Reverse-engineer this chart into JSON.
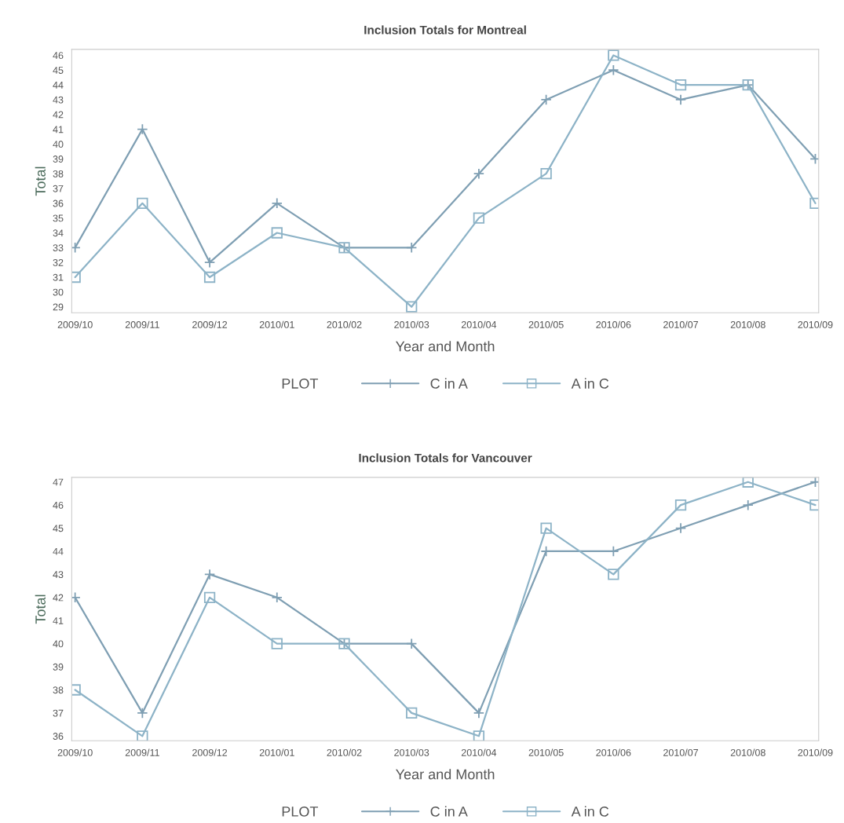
{
  "chart_data": [
    {
      "type": "line",
      "title": "Inclusion Totals for Montreal",
      "xlabel": "Year and Month",
      "ylabel": "Total",
      "legend_title": "PLOT",
      "legend": "bottom",
      "grid": false,
      "categories": [
        "2009/10",
        "2009/11",
        "2009/12",
        "2010/01",
        "2010/02",
        "2010/03",
        "2010/04",
        "2010/05",
        "2010/06",
        "2010/07",
        "2010/08",
        "2010/09"
      ],
      "ylim": [
        28.6,
        46.4
      ],
      "yticks": [
        29,
        30,
        31,
        32,
        33,
        34,
        35,
        36,
        37,
        38,
        39,
        40,
        41,
        42,
        43,
        44,
        45,
        46
      ],
      "series": [
        {
          "name": "C in A",
          "color": "#7f9fb3",
          "marker": "cross",
          "values": [
            33,
            41,
            32,
            36,
            33,
            33,
            38,
            43,
            45,
            43,
            44,
            39
          ]
        },
        {
          "name": "A in C",
          "color": "#8db3c7",
          "marker": "square",
          "values": [
            31,
            36,
            31,
            34,
            33,
            29,
            35,
            38,
            46,
            44,
            44,
            36
          ]
        }
      ]
    },
    {
      "type": "line",
      "title": "Inclusion Totals for Vancouver",
      "xlabel": "Year and Month",
      "ylabel": "Total",
      "legend_title": "PLOT",
      "legend": "bottom",
      "grid": false,
      "categories": [
        "2009/10",
        "2009/11",
        "2009/12",
        "2010/01",
        "2010/02",
        "2010/03",
        "2010/04",
        "2010/05",
        "2010/06",
        "2010/07",
        "2010/08",
        "2010/09"
      ],
      "ylim": [
        35.8,
        47.2
      ],
      "yticks": [
        36,
        37,
        38,
        39,
        40,
        41,
        42,
        43,
        44,
        45,
        46,
        47
      ],
      "series": [
        {
          "name": "C in A",
          "color": "#7f9fb3",
          "marker": "cross",
          "values": [
            42,
            37,
            43,
            42,
            40,
            40,
            37,
            44,
            44,
            45,
            46,
            47
          ]
        },
        {
          "name": "A in C",
          "color": "#8db3c7",
          "marker": "square",
          "values": [
            38,
            36,
            42,
            40,
            40,
            37,
            36,
            45,
            43,
            46,
            47,
            46
          ]
        }
      ]
    }
  ]
}
